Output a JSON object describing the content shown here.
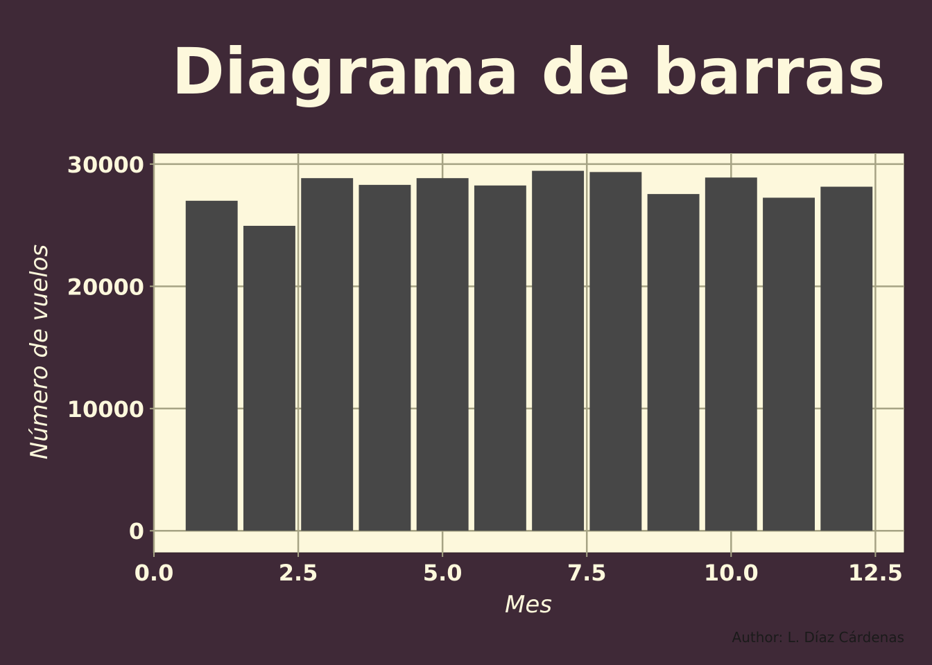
{
  "chart_data": {
    "type": "bar",
    "title": "Diagrama de barras",
    "xlabel": "Mes",
    "ylabel": "Número de vuelos",
    "caption": "Author: L. Díaz Cárdenas",
    "x": [
      1,
      2,
      3,
      4,
      5,
      6,
      7,
      8,
      9,
      10,
      11,
      12
    ],
    "values": [
      27000,
      24950,
      28850,
      28300,
      28850,
      28250,
      29450,
      29350,
      27550,
      28900,
      27250,
      28150
    ],
    "bar_width": 0.9,
    "xlim": [
      0,
      13
    ],
    "ylim": [
      -1800,
      30900
    ],
    "xticks": [
      0.0,
      2.5,
      5.0,
      7.5,
      10.0,
      12.5
    ],
    "xtick_labels": [
      "0.0",
      "2.5",
      "5.0",
      "7.5",
      "10.0",
      "12.5"
    ],
    "yticks": [
      0,
      10000,
      20000,
      30000
    ],
    "ytick_labels": [
      "0",
      "10000",
      "20000",
      "30000"
    ],
    "grid": true,
    "colors": {
      "background": "#3f2937",
      "panel": "#fdf8dc",
      "bar": "#474747",
      "grid": "#a6a384",
      "text": "#fdf8dc",
      "caption": "#1a1a1a"
    }
  }
}
